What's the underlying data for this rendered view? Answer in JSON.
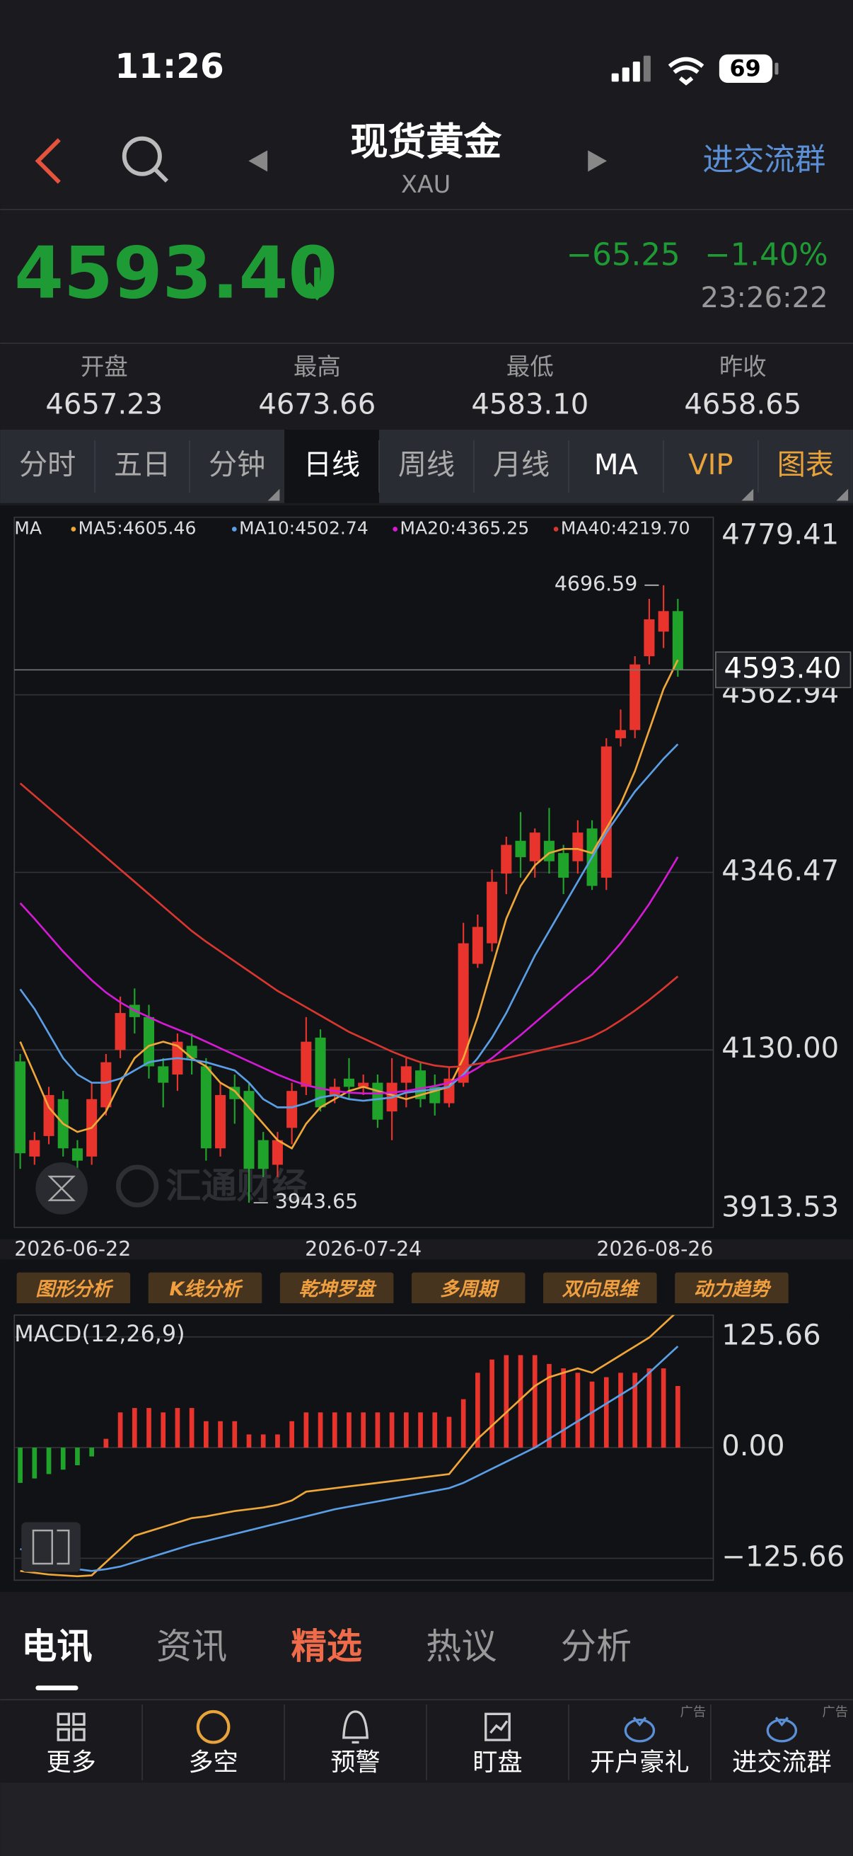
{
  "status": {
    "time": "11:26",
    "battery": "69"
  },
  "header": {
    "title": "现货黄金",
    "subtitle": "XAU",
    "action": "进交流群"
  },
  "quote": {
    "price": "4593.40",
    "change": "−65.25",
    "change_pct": "−1.40%",
    "time": "23:26:22"
  },
  "stats": [
    {
      "label": "开盘",
      "value": "4657.23"
    },
    {
      "label": "最高",
      "value": "4673.66"
    },
    {
      "label": "最低",
      "value": "4583.10"
    },
    {
      "label": "昨收",
      "value": "4658.65"
    }
  ],
  "tabs": [
    {
      "label": "分时"
    },
    {
      "label": "五日"
    },
    {
      "label": "分钟"
    },
    {
      "label": "日线",
      "active": true
    },
    {
      "label": "周线"
    },
    {
      "label": "月线"
    },
    {
      "label": "MA",
      "color": "#ffffff"
    },
    {
      "label": "VIP",
      "color": "#e8a33a"
    },
    {
      "label": "图表",
      "color": "#e8a33a"
    }
  ],
  "chart_data": [
    {
      "type": "candlestick",
      "indicator_label": "MA",
      "watermark": "汇通财经",
      "up_color": "#e8342c",
      "down_color": "#1fa32a",
      "categories": [
        "2026-06-22",
        null,
        null,
        null,
        null,
        null,
        null,
        null,
        null,
        null,
        null,
        null,
        null,
        null,
        null,
        null,
        null,
        null,
        null,
        null,
        null,
        null,
        null,
        null,
        "2026-07-24",
        null,
        null,
        null,
        null,
        null,
        null,
        null,
        null,
        null,
        null,
        null,
        null,
        null,
        null,
        null,
        null,
        null,
        null,
        null,
        null,
        null,
        "2026-08-26"
      ],
      "open": [
        4116,
        4000,
        4025,
        4070,
        4010,
        4000,
        4060,
        4130,
        4185,
        4170,
        4110,
        4100,
        4135,
        4110,
        4010,
        4085,
        4080,
        4020,
        3990,
        4035,
        4085,
        4145,
        4075,
        4095,
        4085,
        4090,
        4055,
        4090,
        4105,
        4085,
        4065,
        4090,
        4235,
        4260,
        4345,
        4385,
        4360,
        4385,
        4370,
        4360,
        4400,
        4340,
        4510,
        4520,
        4610,
        4640,
        4665
      ],
      "high": [
        4125,
        4030,
        4085,
        4080,
        4020,
        4090,
        4125,
        4195,
        4205,
        4185,
        4120,
        4150,
        4150,
        4120,
        4090,
        4100,
        4090,
        4030,
        4030,
        4090,
        4170,
        4155,
        4095,
        4120,
        4100,
        4100,
        4120,
        4120,
        4115,
        4100,
        4110,
        4285,
        4295,
        4350,
        4390,
        4420,
        4400,
        4425,
        4380,
        4410,
        4410,
        4510,
        4545,
        4610,
        4680,
        4696.59,
        4680
      ],
      "low": [
        3985,
        3990,
        4015,
        4000,
        3975,
        3990,
        4050,
        4120,
        4150,
        4095,
        4060,
        4080,
        4100,
        3995,
        4000,
        4040,
        3943.65,
        3975,
        3975,
        4015,
        4075,
        4055,
        4065,
        4070,
        4075,
        4035,
        4020,
        4060,
        4060,
        4050,
        4060,
        4085,
        4230,
        4250,
        4320,
        4340,
        4340,
        4345,
        4320,
        4345,
        4325,
        4325,
        4500,
        4510,
        4600,
        4620,
        4585
      ],
      "close": [
        4004,
        4020,
        4075,
        4010,
        3995,
        4070,
        4115,
        4175,
        4170,
        4110,
        4090,
        4140,
        4120,
        4010,
        4075,
        4070,
        3985,
        3985,
        4020,
        4080,
        4140,
        4060,
        4085,
        4085,
        4090,
        4045,
        4090,
        4110,
        4070,
        4065,
        4095,
        4260,
        4280,
        4335,
        4380,
        4365,
        4395,
        4360,
        4340,
        4395,
        4330,
        4500,
        4520,
        4600,
        4655,
        4665,
        4593.4
      ],
      "series": [
        {
          "name": "MA5:4605.46",
          "color": "#f0a73a",
          "values": [
            4140,
            4100,
            4060,
            4040,
            4030,
            4035,
            4055,
            4090,
            4120,
            4135,
            4140,
            4135,
            4120,
            4110,
            4090,
            4080,
            4060,
            4040,
            4020,
            4010,
            4040,
            4060,
            4070,
            4080,
            4085,
            4080,
            4075,
            4070,
            4075,
            4080,
            4085,
            4120,
            4170,
            4230,
            4290,
            4330,
            4355,
            4370,
            4375,
            4375,
            4370,
            4400,
            4430,
            4470,
            4520,
            4570,
            4605.46
          ]
        },
        {
          "name": "MA10:4502.74",
          "color": "#5a9fe6",
          "values": [
            4204,
            4180,
            4150,
            4120,
            4100,
            4090,
            4090,
            4095,
            4105,
            4115,
            4118,
            4120,
            4118,
            4115,
            4110,
            4105,
            4090,
            4070,
            4060,
            4060,
            4065,
            4072,
            4075,
            4070,
            4068,
            4070,
            4072,
            4078,
            4080,
            4082,
            4085,
            4100,
            4120,
            4145,
            4175,
            4210,
            4245,
            4275,
            4305,
            4335,
            4365,
            4395,
            4420,
            4445,
            4465,
            4485,
            4502.74
          ]
        },
        {
          "name": "MA20:4365.25",
          "color": "#d41ad4",
          "values": [
            4309,
            4290,
            4270,
            4250,
            4232,
            4215,
            4200,
            4188,
            4178,
            4170,
            4162,
            4155,
            4148,
            4140,
            4132,
            4124,
            4116,
            4108,
            4100,
            4093,
            4087,
            4083,
            4080,
            4078,
            4077,
            4077,
            4078,
            4080,
            4083,
            4086,
            4090,
            4098,
            4108,
            4120,
            4134,
            4148,
            4163,
            4178,
            4193,
            4208,
            4222,
            4240,
            4260,
            4283,
            4308,
            4336,
            4365.25
          ]
        },
        {
          "name": "MA40:4219.70",
          "color": "#d8362e",
          "values": [
            4455,
            4440,
            4425,
            4410,
            4395,
            4380,
            4365,
            4350,
            4335,
            4320,
            4305,
            4290,
            4275,
            4262,
            4250,
            4238,
            4226,
            4214,
            4202,
            4192,
            4182,
            4172,
            4162,
            4152,
            4144,
            4136,
            4128,
            4121,
            4115,
            4111,
            4109,
            4110,
            4113,
            4116,
            4120,
            4124,
            4128,
            4132,
            4136,
            4140,
            4146,
            4155,
            4166,
            4178,
            4191,
            4205,
            4219.7
          ]
        }
      ],
      "last_price": {
        "value": 4593.4,
        "label": "4593.40"
      },
      "ylim": [
        3913.53,
        4779.41
      ],
      "yticks": [
        4779.41,
        4562.94,
        4346.47,
        {
          "value": 4130,
          "label": "4130.00"
        },
        3913.53
      ],
      "grid": true
    },
    {
      "type": "macd",
      "title": "MACD(12,26,9)",
      "up_color": "#e8342c",
      "down_color": "#1fa32a",
      "histogram": [
        -40,
        -35,
        -30,
        -25,
        -20,
        -10,
        10,
        40,
        45,
        45,
        40,
        45,
        45,
        30,
        30,
        30,
        15,
        15,
        15,
        30,
        40,
        40,
        40,
        40,
        40,
        40,
        40,
        40,
        40,
        40,
        35,
        55,
        85,
        100,
        105,
        105,
        105,
        95,
        90,
        85,
        75,
        80,
        85,
        85,
        90,
        90,
        70
      ],
      "dif": {
        "color": "#f0a73a",
        "values": [
          -140,
          -142,
          -144,
          -145,
          -146,
          -145,
          -130,
          -115,
          -100,
          -95,
          -90,
          -85,
          -80,
          -78,
          -75,
          -72,
          -70,
          -68,
          -65,
          -60,
          -50,
          -48,
          -46,
          -44,
          -42,
          -40,
          -38,
          -36,
          -34,
          -32,
          -30,
          -10,
          10,
          25,
          40,
          55,
          70,
          80,
          85,
          90,
          85,
          95,
          105,
          115,
          125,
          140,
          155
        ]
      },
      "dea": {
        "color": "#5a9fe6",
        "values": [
          -115,
          -122,
          -128,
          -134,
          -138,
          -140,
          -138,
          -135,
          -130,
          -125,
          -120,
          -115,
          -110,
          -106,
          -102,
          -98,
          -94,
          -90,
          -86,
          -82,
          -78,
          -74,
          -70,
          -67,
          -64,
          -61,
          -58,
          -55,
          -52,
          -49,
          -46,
          -40,
          -32,
          -24,
          -16,
          -8,
          0,
          10,
          20,
          30,
          40,
          50,
          60,
          70,
          85,
          100,
          115
        ]
      },
      "ylim": [
        -150.5,
        150.5
      ],
      "yticks": [
        125.66,
        {
          "value": 0,
          "label": "0.00"
        },
        {
          "value": -125.66,
          "label": "−125.66"
        }
      ],
      "grid": true
    }
  ],
  "tool_buttons": [
    "图形分析",
    "K线分析",
    "乾坤罗盘",
    "多周期",
    "双向思维",
    "动力趋势"
  ],
  "news_tabs": [
    {
      "label": "电讯",
      "active": true
    },
    {
      "label": "资讯"
    },
    {
      "label": "精选",
      "color": "#f06b4a"
    },
    {
      "label": "热议"
    },
    {
      "label": "分析"
    }
  ],
  "bottom_nav": [
    {
      "label": "更多"
    },
    {
      "label": "多空"
    },
    {
      "label": "预警"
    },
    {
      "label": "盯盘"
    },
    {
      "label": "开户豪礼",
      "ad": "广告"
    },
    {
      "label": "进交流群",
      "ad": "广告"
    }
  ]
}
